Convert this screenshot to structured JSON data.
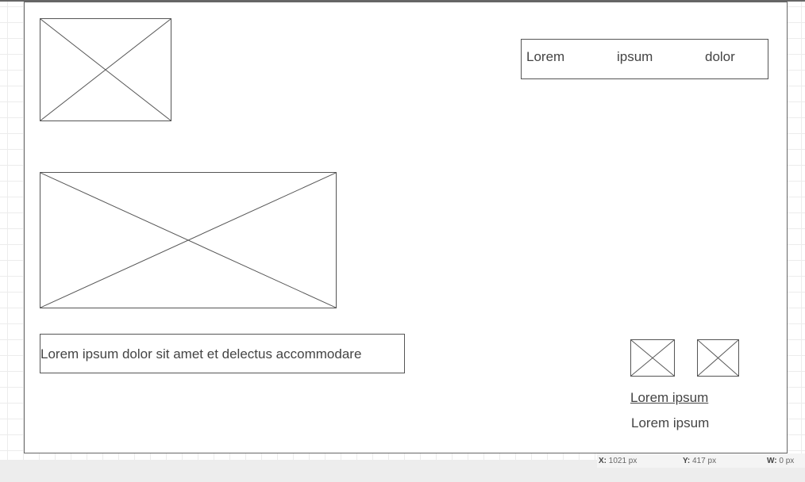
{
  "nav": {
    "items": [
      "Lorem",
      "ipsum",
      "dolor"
    ]
  },
  "caption_box": {
    "text": "Lorem ipsum dolor sit amet et delectus accommodare"
  },
  "footer_links": {
    "link": "Lorem ipsum",
    "text": "Lorem ipsum"
  },
  "status_bar": {
    "x_label": "X:",
    "x_value": "1021 px",
    "y_label": "Y:",
    "y_value": "417 px",
    "w_label": "W:",
    "w_value": "0 px"
  },
  "colors": {
    "border": "#555555",
    "text": "#444444",
    "grid": "#ececec"
  }
}
